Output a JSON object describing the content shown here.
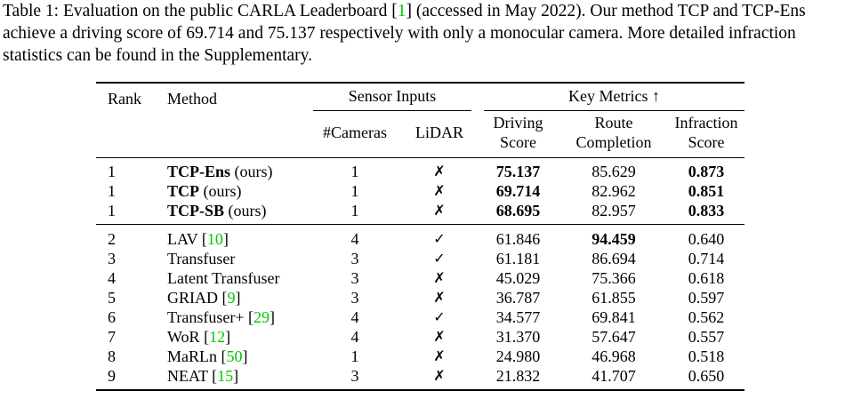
{
  "caption": {
    "label": "Table 1:",
    "text_before_cite": " Evaluation on the public CARLA Leaderboard [",
    "cite": "1",
    "text_after_cite": "] (accessed in May 2022). Our method TCP and TCP-Ens achieve a driving score of 69.714 and 75.137 respectively with only a monocular camera. More detailed infraction statistics can be found in the Supplementary."
  },
  "headers": {
    "rank": "Rank",
    "method": "Method",
    "sensor_inputs": "Sensor Inputs",
    "key_metrics": "Key Metrics ↑",
    "cameras": "#Cameras",
    "lidar": "LiDAR",
    "driving_1": "Driving",
    "driving_2": "Score",
    "route_1": "Route",
    "route_2": "Completion",
    "infraction_1": "Infraction",
    "infraction_2": "Score"
  },
  "marks": {
    "yes": "✓",
    "no": "✗"
  },
  "groups": [
    [
      {
        "rank": "1",
        "name": "TCP-Ens",
        "suffix": " (ours)",
        "cite": "",
        "cameras": "1",
        "lidar": "no",
        "driving": "75.137",
        "route": "85.629",
        "infraction": "0.873",
        "bold": [
          "name",
          "driving",
          "infraction"
        ]
      },
      {
        "rank": "1",
        "name": "TCP",
        "suffix": " (ours)",
        "cite": "",
        "cameras": "1",
        "lidar": "no",
        "driving": "69.714",
        "route": "82.962",
        "infraction": "0.851",
        "bold": [
          "name",
          "driving",
          "infraction"
        ]
      },
      {
        "rank": "1",
        "name": "TCP-SB",
        "suffix": " (ours)",
        "cite": "",
        "cameras": "1",
        "lidar": "no",
        "driving": "68.695",
        "route": "82.957",
        "infraction": "0.833",
        "bold": [
          "name",
          "driving",
          "infraction"
        ]
      }
    ],
    [
      {
        "rank": "2",
        "name": "LAV",
        "suffix": "",
        "cite": "10",
        "cameras": "4",
        "lidar": "yes",
        "driving": "61.846",
        "route": "94.459",
        "infraction": "0.640",
        "bold": [
          "route"
        ]
      },
      {
        "rank": "3",
        "name": "Transfuser",
        "suffix": "",
        "cite": "",
        "cameras": "3",
        "lidar": "yes",
        "driving": "61.181",
        "route": "86.694",
        "infraction": "0.714",
        "bold": []
      },
      {
        "rank": "4",
        "name": "Latent Transfuser",
        "suffix": "",
        "cite": "",
        "cameras": "3",
        "lidar": "no",
        "driving": "45.029",
        "route": "75.366",
        "infraction": "0.618",
        "bold": []
      },
      {
        "rank": "5",
        "name": "GRIAD",
        "suffix": "",
        "cite": "9",
        "cameras": "3",
        "lidar": "no",
        "driving": "36.787",
        "route": "61.855",
        "infraction": "0.597",
        "bold": []
      },
      {
        "rank": "6",
        "name": "Transfuser+",
        "suffix": "",
        "cite": "29",
        "cameras": "4",
        "lidar": "yes",
        "driving": "34.577",
        "route": "69.841",
        "infraction": "0.562",
        "bold": []
      },
      {
        "rank": "7",
        "name": "WoR",
        "suffix": "",
        "cite": "12",
        "cameras": "4",
        "lidar": "no",
        "driving": "31.370",
        "route": "57.647",
        "infraction": "0.557",
        "bold": []
      },
      {
        "rank": "8",
        "name": "MaRLn",
        "suffix": "",
        "cite": "50",
        "cameras": "1",
        "lidar": "no",
        "driving": "24.980",
        "route": "46.968",
        "infraction": "0.518",
        "bold": []
      },
      {
        "rank": "9",
        "name": "NEAT",
        "suffix": "",
        "cite": "15",
        "cameras": "3",
        "lidar": "no",
        "driving": "21.832",
        "route": "41.707",
        "infraction": "0.650",
        "bold": []
      }
    ]
  ]
}
